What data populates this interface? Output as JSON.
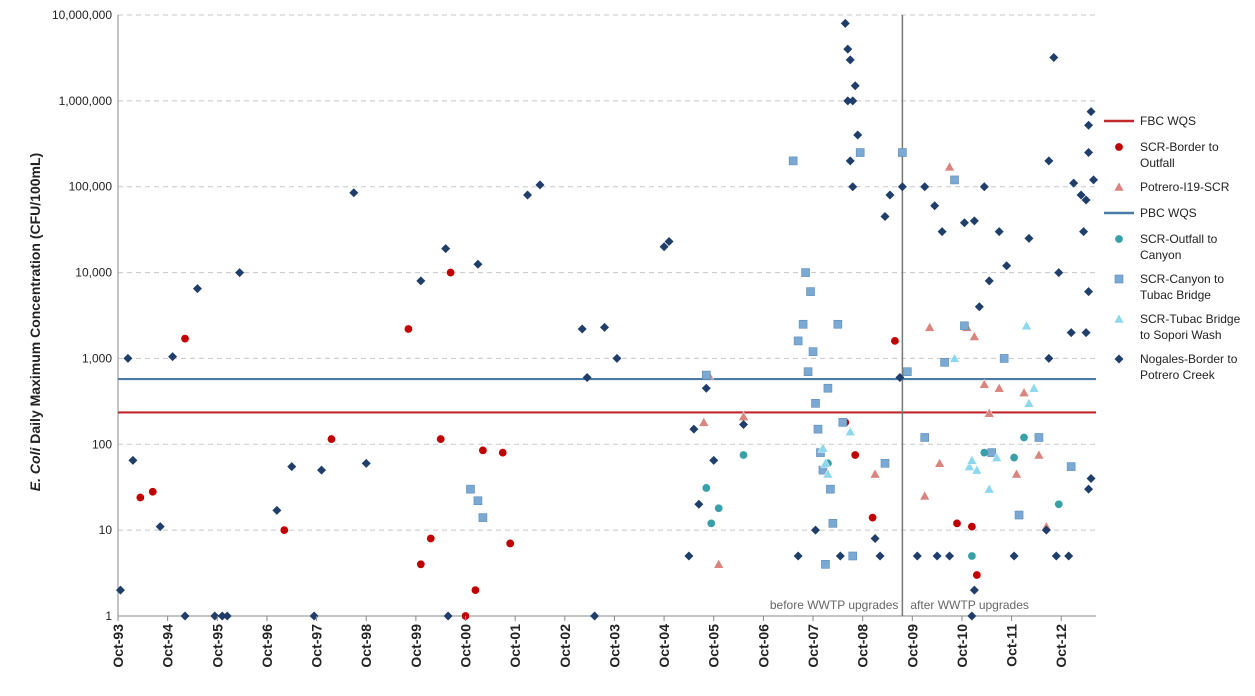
{
  "chart_data": {
    "type": "scatter",
    "title": "",
    "ylabel_prefix": "E. Coli",
    "ylabel_suffix": " Daily Maximum Concentration (CFU/100mL)",
    "yscale": "log",
    "ylim": [
      1,
      10000000
    ],
    "yticks": [
      {
        "v": 1,
        "label": "1"
      },
      {
        "v": 10,
        "label": "10"
      },
      {
        "v": 100,
        "label": "100"
      },
      {
        "v": 1000,
        "label": "1,000"
      },
      {
        "v": 10000,
        "label": "10,000"
      },
      {
        "v": 100000,
        "label": "100,000"
      },
      {
        "v": 1000000,
        "label": "1,000,000"
      },
      {
        "v": 10000000,
        "label": "10,000,000"
      }
    ],
    "xlim": [
      1993.75,
      2013.45
    ],
    "xticks": [
      {
        "v": 1993.75,
        "label": "Oct-93"
      },
      {
        "v": 1994.75,
        "label": "Oct-94"
      },
      {
        "v": 1995.75,
        "label": "Oct-95"
      },
      {
        "v": 1996.75,
        "label": "Oct-96"
      },
      {
        "v": 1997.75,
        "label": "Oct-97"
      },
      {
        "v": 1998.75,
        "label": "Oct-98"
      },
      {
        "v": 1999.75,
        "label": "Oct-99"
      },
      {
        "v": 2000.75,
        "label": "Oct-00"
      },
      {
        "v": 2001.75,
        "label": "Oct-01"
      },
      {
        "v": 2002.75,
        "label": "Oct-02"
      },
      {
        "v": 2003.75,
        "label": "Oct-03"
      },
      {
        "v": 2004.75,
        "label": "Oct-04"
      },
      {
        "v": 2005.75,
        "label": "Oct-05"
      },
      {
        "v": 2006.75,
        "label": "Oct-06"
      },
      {
        "v": 2007.75,
        "label": "Oct-07"
      },
      {
        "v": 2008.75,
        "label": "Oct-08"
      },
      {
        "v": 2009.75,
        "label": "Oct-09"
      },
      {
        "v": 2010.75,
        "label": "Oct-10"
      },
      {
        "v": 2011.75,
        "label": "Oct-11"
      },
      {
        "v": 2012.75,
        "label": "Oct-12"
      }
    ],
    "grid": "horizontal dashed",
    "legend_position": "right",
    "reference_lines": [
      {
        "name": "FBC WQS",
        "value": 235,
        "color": "#c0282d"
      },
      {
        "name": "PBC WQS",
        "value": 575,
        "color": "#4a7aa5"
      }
    ],
    "divider": {
      "x": 2009.55,
      "left_label": "before WWTP upgrades",
      "right_label": "after WWTP upgrades"
    },
    "series": [
      {
        "name": "SCR-Border to Outfall",
        "marker": "circle",
        "color": "#c00000",
        "points": [
          [
            1994.2,
            24
          ],
          [
            1994.45,
            28
          ],
          [
            1995.1,
            1700
          ],
          [
            1997.1,
            10
          ],
          [
            1998.05,
            115
          ],
          [
            1999.6,
            2200
          ],
          [
            1999.85,
            4
          ],
          [
            2000.05,
            8
          ],
          [
            2000.25,
            115
          ],
          [
            2000.45,
            10000
          ],
          [
            2000.75,
            1
          ],
          [
            2000.95,
            2
          ],
          [
            2001.1,
            85
          ],
          [
            2001.5,
            80
          ],
          [
            2001.65,
            7
          ],
          [
            2009.4,
            1600
          ],
          [
            2008.95,
            14
          ],
          [
            2008.6,
            75
          ],
          [
            2008.4,
            180
          ],
          [
            2010.95,
            11
          ],
          [
            2011.05,
            3
          ],
          [
            2010.65,
            12
          ]
        ]
      },
      {
        "name": "Potrero-I19-SCR",
        "marker": "triangle",
        "color": "#d9847c",
        "points": [
          [
            2005.65,
            640
          ],
          [
            2005.55,
            180
          ],
          [
            2005.85,
            4
          ],
          [
            2006.35,
            210
          ],
          [
            2010.5,
            170000
          ],
          [
            2010.0,
            25
          ],
          [
            2010.1,
            2300
          ],
          [
            2010.85,
            2300
          ],
          [
            2011.0,
            1800
          ],
          [
            2011.2,
            500
          ],
          [
            2011.5,
            450
          ],
          [
            2012.0,
            400
          ],
          [
            2011.85,
            45
          ],
          [
            2012.3,
            75
          ],
          [
            2012.45,
            11
          ],
          [
            2009.0,
            45
          ],
          [
            2010.3,
            60
          ],
          [
            2011.3,
            230
          ]
        ]
      },
      {
        "name": "SCR-Outfall to Canyon",
        "marker": "circle",
        "color": "#3aa0a8",
        "points": [
          [
            2005.6,
            31
          ],
          [
            2005.7,
            12
          ],
          [
            2005.85,
            18
          ],
          [
            2006.35,
            75
          ],
          [
            2008.05,
            60
          ],
          [
            2010.95,
            5
          ],
          [
            2011.2,
            80
          ],
          [
            2012.7,
            20
          ],
          [
            2012.0,
            120
          ],
          [
            2011.8,
            70
          ]
        ]
      },
      {
        "name": "SCR-Canyon to Tubac Bridge",
        "marker": "square",
        "color": "#7aaad4",
        "points": [
          [
            2000.85,
            30
          ],
          [
            2001.0,
            22
          ],
          [
            2001.1,
            14
          ],
          [
            2005.6,
            640
          ],
          [
            2007.35,
            200000
          ],
          [
            2007.55,
            2500
          ],
          [
            2007.6,
            10000
          ],
          [
            2007.7,
            6000
          ],
          [
            2007.75,
            1200
          ],
          [
            2007.8,
            300
          ],
          [
            2007.85,
            150
          ],
          [
            2007.9,
            80
          ],
          [
            2007.95,
            50
          ],
          [
            2008.0,
            4
          ],
          [
            2008.1,
            30
          ],
          [
            2008.15,
            12
          ],
          [
            2008.25,
            2500
          ],
          [
            2008.35,
            180
          ],
          [
            2008.55,
            5
          ],
          [
            2008.7,
            250000
          ],
          [
            2009.2,
            60
          ],
          [
            2009.55,
            250000
          ],
          [
            2009.65,
            700
          ],
          [
            2010.0,
            120
          ],
          [
            2010.4,
            900
          ],
          [
            2010.6,
            120000
          ],
          [
            2010.8,
            2400
          ],
          [
            2011.35,
            80
          ],
          [
            2011.6,
            1000
          ],
          [
            2011.9,
            15
          ],
          [
            2012.3,
            120
          ],
          [
            2012.95,
            55
          ],
          [
            2007.45,
            1600
          ],
          [
            2007.65,
            700
          ],
          [
            2008.05,
            450
          ]
        ]
      },
      {
        "name": "SCR-Tubac Bridge to Sopori Wash",
        "marker": "triangle",
        "color": "#8ed8ee",
        "points": [
          [
            2008.0,
            60
          ],
          [
            2008.05,
            45
          ],
          [
            2007.95,
            90
          ],
          [
            2010.9,
            55
          ],
          [
            2010.95,
            65
          ],
          [
            2011.05,
            50
          ],
          [
            2011.3,
            30
          ],
          [
            2012.05,
            2400
          ],
          [
            2012.1,
            300
          ],
          [
            2012.2,
            450
          ],
          [
            2011.45,
            70
          ],
          [
            2008.5,
            140
          ],
          [
            2010.6,
            1000
          ]
        ]
      },
      {
        "name": "Nogales-Border to Potrero Creek",
        "marker": "diamond",
        "color": "#1f3e6a",
        "points": [
          [
            1993.8,
            2
          ],
          [
            1993.95,
            1000
          ],
          [
            1994.05,
            65
          ],
          [
            1994.6,
            11
          ],
          [
            1994.85,
            1050
          ],
          [
            1995.35,
            6500
          ],
          [
            1995.1,
            1
          ],
          [
            1995.7,
            1
          ],
          [
            1995.85,
            1
          ],
          [
            1995.95,
            1
          ],
          [
            1996.2,
            10000
          ],
          [
            1996.95,
            17
          ],
          [
            1997.25,
            55
          ],
          [
            1997.7,
            1
          ],
          [
            1997.85,
            50
          ],
          [
            1998.5,
            85000
          ],
          [
            1998.75,
            60
          ],
          [
            1999.85,
            8000
          ],
          [
            2000.35,
            19000
          ],
          [
            2000.4,
            1
          ],
          [
            2001.0,
            12500
          ],
          [
            2002.0,
            80000
          ],
          [
            2002.25,
            105000
          ],
          [
            2003.1,
            2200
          ],
          [
            2003.2,
            600
          ],
          [
            2003.35,
            1
          ],
          [
            2003.55,
            2300
          ],
          [
            2003.8,
            1000
          ],
          [
            2004.75,
            20000
          ],
          [
            2004.85,
            23000
          ],
          [
            2005.25,
            5
          ],
          [
            2005.35,
            150
          ],
          [
            2005.45,
            20
          ],
          [
            2005.6,
            450
          ],
          [
            2005.75,
            65
          ],
          [
            2006.35,
            170
          ],
          [
            2008.4,
            8000000
          ],
          [
            2008.45,
            4000000
          ],
          [
            2008.5,
            3000000
          ],
          [
            2008.55,
            1000000
          ],
          [
            2008.6,
            1500000
          ],
          [
            2008.65,
            400000
          ],
          [
            2008.5,
            200000
          ],
          [
            2008.55,
            100000
          ],
          [
            2008.45,
            1000000
          ],
          [
            2009.55,
            100000
          ],
          [
            2009.3,
            80000
          ],
          [
            2009.2,
            45000
          ],
          [
            2010.0,
            100000
          ],
          [
            2010.2,
            60000
          ],
          [
            2010.35,
            30000
          ],
          [
            2010.8,
            38000
          ],
          [
            2011.0,
            40000
          ],
          [
            2011.2,
            100000
          ],
          [
            2011.5,
            30000
          ],
          [
            2011.65,
            12000
          ],
          [
            2012.6,
            3200000
          ],
          [
            2012.5,
            200000
          ],
          [
            2013.0,
            110000
          ],
          [
            2013.15,
            80000
          ],
          [
            2013.25,
            70000
          ],
          [
            2013.35,
            750000
          ],
          [
            2013.3,
            520000
          ],
          [
            2013.3,
            250000
          ],
          [
            2013.4,
            120000
          ],
          [
            2013.2,
            30000
          ],
          [
            2013.3,
            6000
          ],
          [
            2013.25,
            2000
          ],
          [
            2013.35,
            40
          ],
          [
            2013.3,
            30
          ],
          [
            2012.5,
            1000
          ],
          [
            2012.45,
            10
          ],
          [
            2012.65,
            5
          ],
          [
            2010.95,
            1
          ],
          [
            2011.0,
            2
          ],
          [
            2009.85,
            5
          ],
          [
            2009.1,
            5
          ],
          [
            2009.0,
            8
          ],
          [
            2008.3,
            5
          ],
          [
            2007.45,
            5
          ],
          [
            2007.8,
            10
          ],
          [
            2010.25,
            5
          ],
          [
            2010.5,
            5
          ],
          [
            2011.8,
            5
          ],
          [
            2012.9,
            5
          ],
          [
            2011.3,
            8000
          ],
          [
            2011.1,
            4000
          ],
          [
            2012.1,
            25000
          ],
          [
            2012.7,
            10000
          ],
          [
            2012.95,
            2000
          ],
          [
            2009.5,
            600
          ]
        ]
      }
    ]
  },
  "legend": {
    "items": [
      {
        "label": [
          "FBC WQS"
        ],
        "marker": "line",
        "color": "#c0282d"
      },
      {
        "label": [
          "SCR-Border to",
          "Outfall"
        ],
        "marker": "circle",
        "color": "#c00000"
      },
      {
        "label": [
          "Potrero-I19-SCR"
        ],
        "marker": "triangle",
        "color": "#d9847c"
      },
      {
        "label": [
          "PBC WQS"
        ],
        "marker": "line",
        "color": "#4a7aa5"
      },
      {
        "label": [
          "SCR-Outfall to",
          "Canyon"
        ],
        "marker": "circle",
        "color": "#3aa0a8"
      },
      {
        "label": [
          "SCR-Canyon to",
          "Tubac Bridge"
        ],
        "marker": "square",
        "color": "#7aaad4"
      },
      {
        "label": [
          "SCR-Tubac Bridge",
          "to Sopori Wash"
        ],
        "marker": "triangle",
        "color": "#8ed8ee"
      },
      {
        "label": [
          "Nogales-Border to",
          "Potrero Creek"
        ],
        "marker": "diamond",
        "color": "#1f3e6a"
      }
    ]
  }
}
